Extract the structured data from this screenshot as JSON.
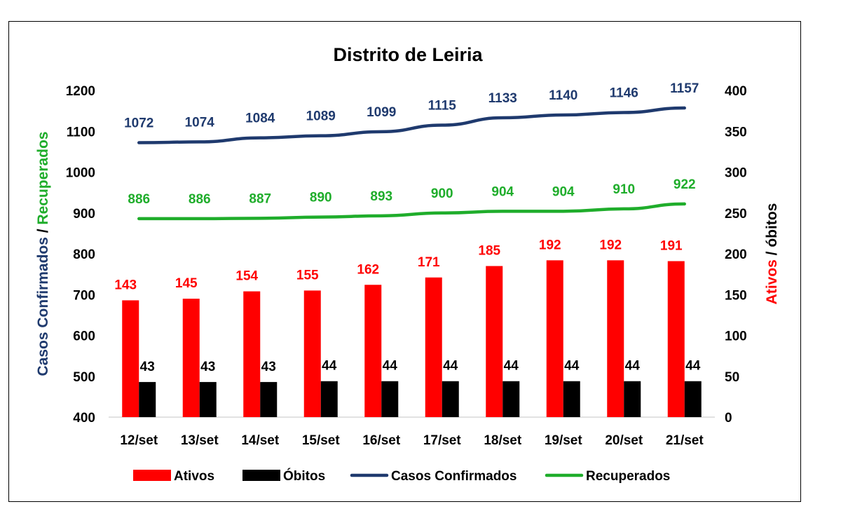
{
  "chart_data": {
    "type": "bar",
    "title": "Distrito de Leiria",
    "categories": [
      "12/set",
      "13/set",
      "14/set",
      "15/set",
      "16/set",
      "17/set",
      "18/set",
      "19/set",
      "20/set",
      "21/set"
    ],
    "left_axis": {
      "label_parts": [
        {
          "text": "Casos Confirmados",
          "color": "#1f3a6e"
        },
        {
          "text": " / ",
          "color": "#000000"
        },
        {
          "text": "Recuperados",
          "color": "#1fad2b"
        }
      ],
      "ylim": [
        400,
        1200
      ],
      "ticks": [
        400,
        500,
        600,
        700,
        800,
        900,
        1000,
        1100,
        1200
      ]
    },
    "right_axis": {
      "label_parts": [
        {
          "text": "Ativos",
          "color": "#ff0000"
        },
        {
          "text": " / óbitos",
          "color": "#000000"
        }
      ],
      "ylim": [
        0,
        400
      ],
      "ticks": [
        0,
        50,
        100,
        150,
        200,
        250,
        300,
        350,
        400
      ]
    },
    "grid": false,
    "legend_placement": "bottom",
    "series": [
      {
        "name": "Ativos",
        "kind": "bar",
        "axis": "right",
        "color": "#ff0000",
        "values": [
          143,
          145,
          154,
          155,
          162,
          171,
          185,
          192,
          192,
          191
        ]
      },
      {
        "name": "Óbitos",
        "kind": "bar",
        "axis": "right",
        "color": "#000000",
        "values": [
          43,
          43,
          43,
          44,
          44,
          44,
          44,
          44,
          44,
          44
        ]
      },
      {
        "name": "Casos Confirmados",
        "kind": "line",
        "axis": "left",
        "color": "#1f3a6e",
        "values": [
          1072,
          1074,
          1084,
          1089,
          1099,
          1115,
          1133,
          1140,
          1146,
          1157
        ]
      },
      {
        "name": "Recuperados",
        "kind": "line",
        "axis": "left",
        "color": "#1fad2b",
        "values": [
          886,
          886,
          887,
          890,
          893,
          900,
          904,
          904,
          910,
          922
        ]
      }
    ]
  }
}
